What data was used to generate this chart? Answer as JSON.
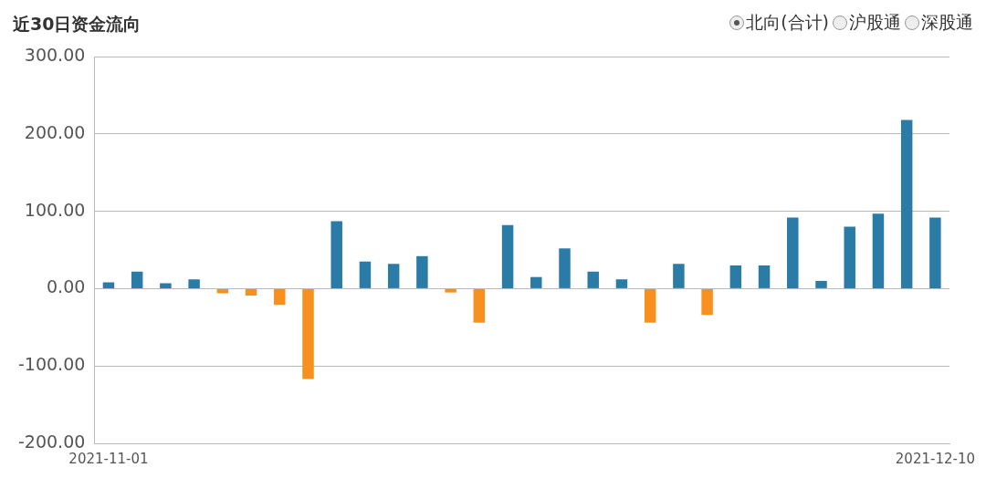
{
  "chart_data": {
    "type": "bar",
    "title": "近30日资金流向",
    "annotations": [
      "北向(合计)",
      "沪股通",
      "深股通"
    ],
    "categories": [
      "2021-11-01",
      null,
      null,
      null,
      null,
      null,
      null,
      null,
      null,
      null,
      null,
      null,
      null,
      null,
      null,
      null,
      null,
      null,
      null,
      null,
      null,
      null,
      null,
      null,
      null,
      null,
      null,
      null,
      null,
      "2021-12-10"
    ],
    "values": [
      8,
      22,
      7,
      12,
      -6,
      -9,
      -21,
      -117,
      87,
      35,
      32,
      42,
      -5,
      -44,
      82,
      15,
      52,
      22,
      12,
      -44,
      32,
      -34,
      30,
      30,
      92,
      10,
      80,
      97,
      218,
      92
    ],
    "colors": [
      "#2a7ca7",
      "#2a7ca7",
      "#2a7ca7",
      "#2a7ca7",
      "#f7901e",
      "#f7901e",
      "#f7901e",
      "#f7901e",
      "#2a7ca7",
      "#2a7ca7",
      "#2a7ca7",
      "#2a7ca7",
      "#f7901e",
      "#f7901e",
      "#2a7ca7",
      "#2a7ca7",
      "#2a7ca7",
      "#2a7ca7",
      "#2a7ca7",
      "#f7901e",
      "#2a7ca7",
      "#f7901e",
      "#2a7ca7",
      "#2a7ca7",
      "#2a7ca7",
      "#2a7ca7",
      "#2a7ca7",
      "#2a7ca7",
      "#2a7ca7",
      "#2a7ca7"
    ],
    "ylim": [
      -200,
      300
    ],
    "yticks": [
      {
        "value": -200,
        "label": "-200.00"
      },
      {
        "value": -100,
        "label": "-100.00"
      },
      {
        "value": 0,
        "label": "0.00"
      },
      {
        "value": 100,
        "label": "100.00"
      },
      {
        "value": 200,
        "label": "200.00"
      },
      {
        "value": 300,
        "label": "300.00"
      }
    ],
    "grid": "y"
  }
}
